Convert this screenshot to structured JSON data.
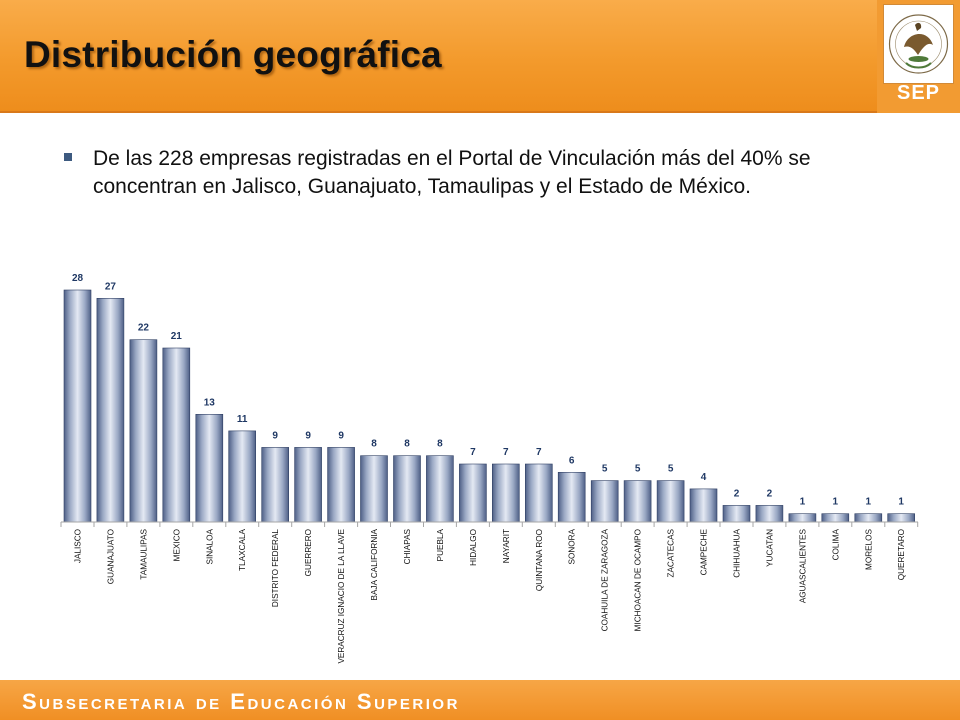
{
  "slide": {
    "title": "Distribución geográfica",
    "bullet": "De las 228 empresas registradas en el Portal de Vinculación más del 40% se concentran en Jalisco, Guanajuato, Tamaulipas y el Estado de México.",
    "logo_text": "SEP",
    "footer": "Subsecretaria de Educación Superior"
  },
  "colors": {
    "header": "#f39a2c",
    "bar": "#8e9bb8",
    "label": "#1f3864",
    "footer": "#f08f24"
  },
  "chart_data": {
    "type": "bar",
    "categories": [
      "JALISCO",
      "GUANAJUATO",
      "TAMAULIPAS",
      "MEXICO",
      "SINALOA",
      "TLAXCALA",
      "DISTRITO FEDERAL",
      "GUERRERO",
      "VERACRUZ IGNACIO DE LA LLAVE",
      "BAJA CALIFORNIA",
      "CHIAPAS",
      "PUEBLA",
      "HIDALGO",
      "NAYARIT",
      "QUINTANA ROO",
      "SONORA",
      "COAHUILA DE ZARAGOZA",
      "MICHOACAN DE OCAMPO",
      "ZACATECAS",
      "CAMPECHE",
      "CHIHUAHUA",
      "YUCATAN",
      "AGUASCALIENTES",
      "COLIMA",
      "MORELOS",
      "QUERETARO"
    ],
    "values": [
      28,
      27,
      22,
      21,
      13,
      11,
      9,
      9,
      9,
      8,
      8,
      8,
      7,
      7,
      7,
      6,
      5,
      5,
      5,
      4,
      2,
      2,
      1,
      1,
      1,
      1
    ],
    "ylim": [
      0,
      28
    ],
    "data_labels": true,
    "legend": "none",
    "grid": false
  }
}
